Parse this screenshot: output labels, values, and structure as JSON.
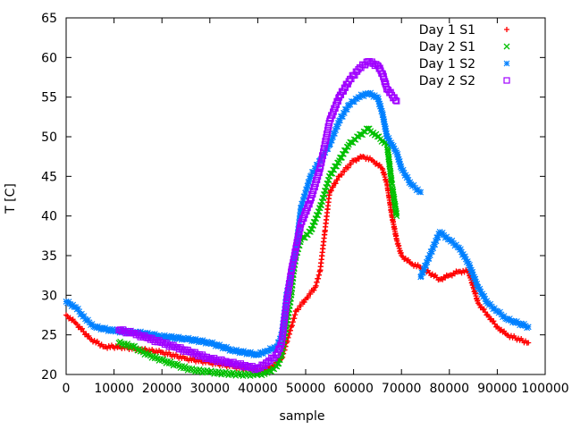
{
  "chart_data": {
    "type": "scatter",
    "title": "",
    "xlabel": "sample",
    "ylabel": "T [C]",
    "xlim": [
      0,
      100000
    ],
    "ylim": [
      20,
      65
    ],
    "xticks": [
      0,
      10000,
      20000,
      30000,
      40000,
      50000,
      60000,
      70000,
      80000,
      90000,
      100000
    ],
    "yticks": [
      20,
      25,
      30,
      35,
      40,
      45,
      50,
      55,
      60,
      65
    ],
    "grid": false,
    "legend_position": "top-right",
    "series": [
      {
        "name": "Day 1 S1",
        "color": "#ff0000",
        "marker": "plus",
        "points": [
          [
            0,
            27.5
          ],
          [
            2000,
            26.5
          ],
          [
            5000,
            24.5
          ],
          [
            8000,
            23.5
          ],
          [
            11000,
            23.5
          ],
          [
            15000,
            23.2
          ],
          [
            20000,
            22.8
          ],
          [
            25000,
            22
          ],
          [
            30000,
            21.5
          ],
          [
            35000,
            21
          ],
          [
            40000,
            20.5
          ],
          [
            43000,
            21
          ],
          [
            45000,
            22
          ],
          [
            46000,
            24
          ],
          [
            47000,
            26
          ],
          [
            48000,
            28
          ],
          [
            50000,
            29.5
          ],
          [
            52000,
            31
          ],
          [
            53000,
            33
          ],
          [
            54000,
            38
          ],
          [
            55000,
            43
          ],
          [
            57000,
            45
          ],
          [
            60000,
            47
          ],
          [
            62000,
            47.5
          ],
          [
            64000,
            47
          ],
          [
            66000,
            46
          ],
          [
            67000,
            44
          ],
          [
            68000,
            40
          ],
          [
            69000,
            37
          ],
          [
            70000,
            35
          ],
          [
            72000,
            34
          ],
          [
            74000,
            33.5
          ],
          [
            78000,
            32
          ],
          [
            80000,
            32.5
          ],
          [
            82000,
            33
          ],
          [
            84000,
            33
          ],
          [
            85000,
            31
          ],
          [
            86000,
            29
          ],
          [
            88000,
            27.5
          ],
          [
            90000,
            26
          ],
          [
            92000,
            25
          ],
          [
            96500,
            24
          ]
        ]
      },
      {
        "name": "Day 2 S1",
        "color": "#00c000",
        "marker": "cross",
        "points": [
          [
            11000,
            24
          ],
          [
            14000,
            23.5
          ],
          [
            17000,
            22.5
          ],
          [
            20000,
            21.8
          ],
          [
            23000,
            21.2
          ],
          [
            26000,
            20.6
          ],
          [
            30000,
            20.3
          ],
          [
            36000,
            20
          ],
          [
            40000,
            20
          ],
          [
            42000,
            20.2
          ],
          [
            44000,
            21
          ],
          [
            45000,
            22.5
          ],
          [
            46000,
            26
          ],
          [
            47000,
            30
          ],
          [
            47500,
            33
          ],
          [
            48000,
            35
          ],
          [
            49000,
            37
          ],
          [
            51000,
            38
          ],
          [
            53000,
            41
          ],
          [
            55000,
            45
          ],
          [
            57000,
            47
          ],
          [
            59000,
            49
          ],
          [
            61000,
            50
          ],
          [
            63000,
            51
          ],
          [
            65000,
            50
          ],
          [
            67000,
            49
          ],
          [
            68000,
            44
          ],
          [
            69000,
            40
          ]
        ]
      },
      {
        "name": "Day 1 S2",
        "color": "#0080ff",
        "marker": "star",
        "points": [
          [
            0,
            29.2
          ],
          [
            2000,
            28.5
          ],
          [
            4000,
            27
          ],
          [
            6000,
            26
          ],
          [
            10000,
            25.5
          ],
          [
            15000,
            25.3
          ],
          [
            20000,
            24.8
          ],
          [
            25000,
            24.5
          ],
          [
            30000,
            24
          ],
          [
            35000,
            23
          ],
          [
            40000,
            22.5
          ],
          [
            42000,
            23
          ],
          [
            44000,
            23.5
          ],
          [
            45000,
            25
          ],
          [
            46000,
            30
          ],
          [
            47000,
            33
          ],
          [
            48000,
            36
          ],
          [
            49000,
            41
          ],
          [
            51000,
            45
          ],
          [
            53000,
            47
          ],
          [
            55000,
            49
          ],
          [
            57000,
            52
          ],
          [
            59000,
            54
          ],
          [
            61000,
            55
          ],
          [
            63000,
            55.5
          ],
          [
            65000,
            55
          ],
          [
            66000,
            53
          ],
          [
            67000,
            50
          ],
          [
            68000,
            49
          ],
          [
            69000,
            48
          ],
          [
            70000,
            46
          ],
          [
            72000,
            44
          ],
          [
            74000,
            43
          ],
          [
            74000,
            32.3
          ],
          [
            78000,
            38
          ],
          [
            80000,
            37
          ],
          [
            82000,
            36
          ],
          [
            84000,
            34
          ],
          [
            86000,
            31
          ],
          [
            88000,
            29
          ],
          [
            90000,
            28
          ],
          [
            92000,
            27
          ],
          [
            96500,
            26
          ]
        ]
      },
      {
        "name": "Day 2 S2",
        "color": "#a000ff",
        "marker": "square",
        "points": [
          [
            11000,
            25.6
          ],
          [
            14000,
            25.2
          ],
          [
            17000,
            24.6
          ],
          [
            20000,
            24
          ],
          [
            23000,
            23.4
          ],
          [
            26000,
            22.8
          ],
          [
            30000,
            22
          ],
          [
            34000,
            21.5
          ],
          [
            38000,
            21
          ],
          [
            40000,
            20.7
          ],
          [
            42000,
            21.5
          ],
          [
            44000,
            22.5
          ],
          [
            45000,
            24
          ],
          [
            46000,
            29
          ],
          [
            47000,
            33
          ],
          [
            48000,
            36
          ],
          [
            49000,
            39
          ],
          [
            51000,
            42
          ],
          [
            53000,
            46
          ],
          [
            55000,
            52
          ],
          [
            57000,
            55
          ],
          [
            59000,
            57
          ],
          [
            61000,
            58.5
          ],
          [
            63000,
            59.5
          ],
          [
            65000,
            59
          ],
          [
            66000,
            58
          ],
          [
            67000,
            56
          ],
          [
            69000,
            54.5
          ]
        ]
      }
    ]
  }
}
